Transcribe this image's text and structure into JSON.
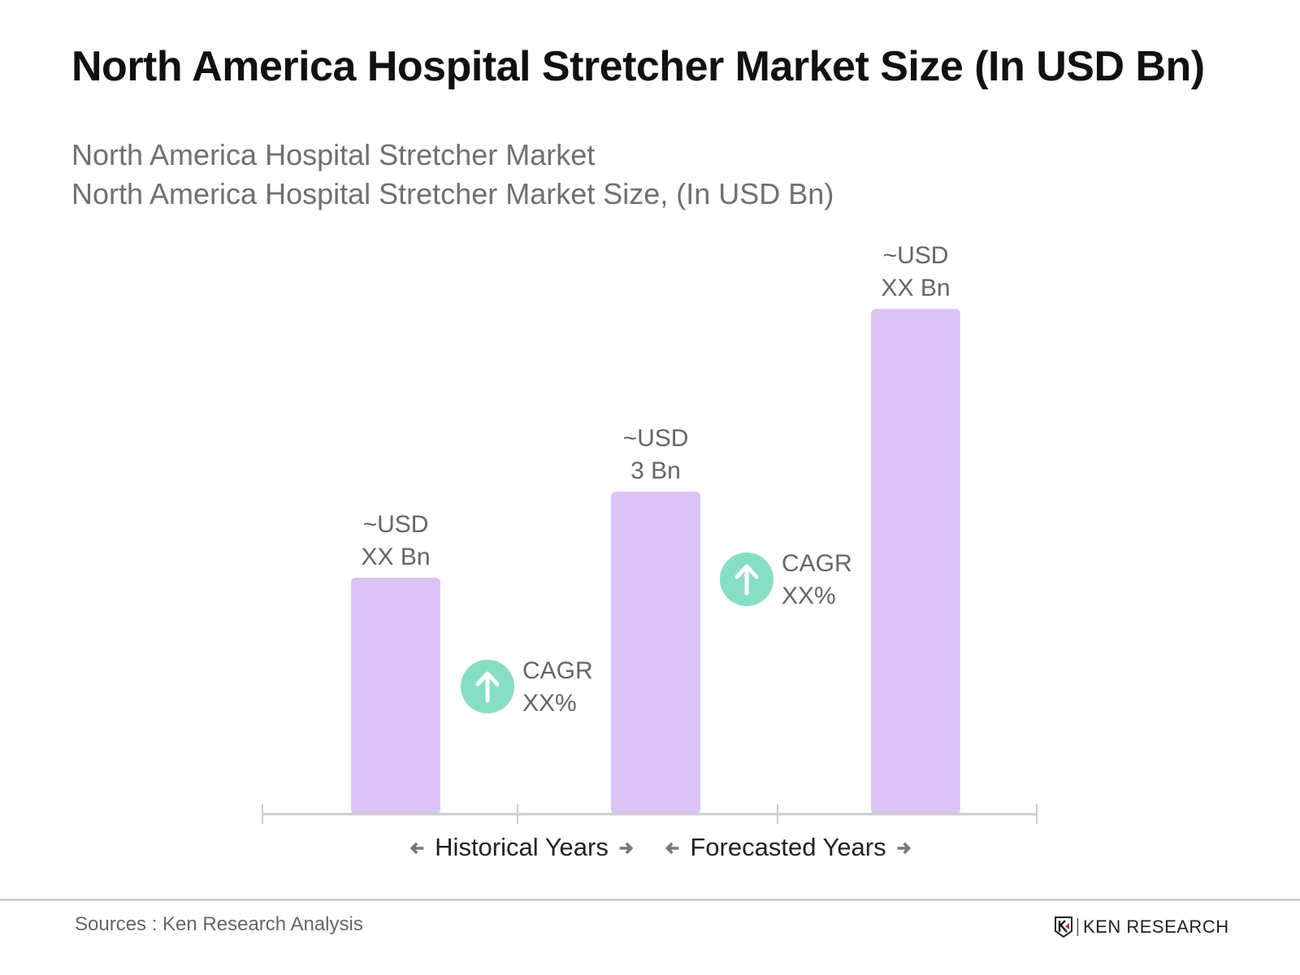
{
  "title": "North America Hospital Stretcher Market Size (In USD Bn)",
  "subtitle_lines": [
    "North America Hospital Stretcher Market",
    "North America Hospital Stretcher Market Size, (In USD Bn)"
  ],
  "chart_data": {
    "type": "bar",
    "categories": [
      "",
      "",
      ""
    ],
    "values": [
      2.2,
      3,
      4.7
    ],
    "data_labels": [
      [
        "~USD",
        "XX Bn"
      ],
      [
        "~USD",
        "3 Bn"
      ],
      [
        "~USD",
        "XX Bn"
      ]
    ],
    "cagr_labels": [
      [
        "CAGR",
        "XX%"
      ],
      [
        "CAGR",
        "XX%"
      ]
    ],
    "x_segments": [
      "Historical Years",
      "Forecasted Years"
    ],
    "grid": false,
    "colors": {
      "bar": "#dcc3f5",
      "cagr_circle": "#86dfc4",
      "axis": "#cccccc"
    }
  },
  "footer": {
    "sources": "Sources : Ken Research Analysis",
    "logo": "KEN RESEARCH"
  }
}
